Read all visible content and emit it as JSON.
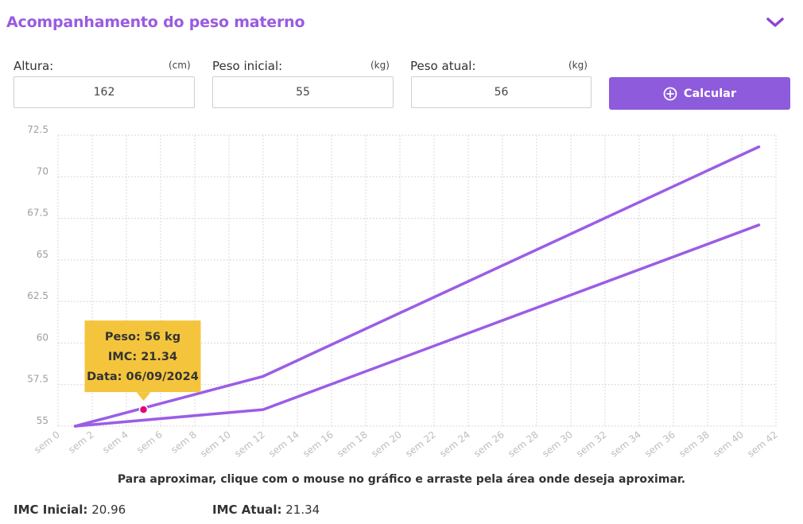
{
  "header": {
    "title": "Acompanhamento do peso materno",
    "toggle_icon": "chevron-down-icon",
    "accent_color": "#9a5be0"
  },
  "form": {
    "altura": {
      "label": "Altura:",
      "unit": "(cm)",
      "value": "162"
    },
    "peso_inicial": {
      "label": "Peso inicial:",
      "unit": "(kg)",
      "value": "55"
    },
    "peso_atual": {
      "label": "Peso atual:",
      "unit": "(kg)",
      "value": "56"
    },
    "calcular_label": "Calcular",
    "calcular_icon": "plus-circle-icon",
    "button_color": "#8e5bdc"
  },
  "chart_data": {
    "type": "line",
    "x_tick_labels": [
      "sem 0",
      "sem 2",
      "sem 4",
      "sem 6",
      "sem 8",
      "sem 10",
      "sem 12",
      "sem 14",
      "sem 16",
      "sem 18",
      "sem 20",
      "sem 22",
      "sem 24",
      "sem 26",
      "sem 28",
      "sem 30",
      "sem 32",
      "sem 34",
      "sem 36",
      "sem 38",
      "sem 40",
      "sem 42"
    ],
    "y_tick_labels": [
      "55",
      "57.5",
      "60",
      "62.5",
      "65",
      "67.5",
      "70",
      "72.5"
    ],
    "ylim": [
      55,
      72.5
    ],
    "xlim": [
      0,
      42
    ],
    "grid": true,
    "line_color": "#9b5de5",
    "series": [
      {
        "x": [
          1,
          12,
          41
        ],
        "y": [
          55,
          58,
          71.8
        ]
      },
      {
        "x": [
          1,
          12,
          41
        ],
        "y": [
          55,
          56,
          67.1
        ]
      }
    ],
    "marker": {
      "x": 5,
      "y": 56,
      "color": "#e0067a"
    },
    "tooltip": {
      "lines": [
        "Peso: 56 kg",
        "IMC: 21.34",
        "Data: 06/09/2024"
      ],
      "bg_color": "#f4c53c"
    }
  },
  "hint": "Para aproximar, clique com o mouse no gráfico e arraste pela área onde deseja aproximar.",
  "imc": {
    "inicial_label": "IMC Inicial:",
    "inicial_value": "20.96",
    "atual_label": "IMC Atual:",
    "atual_value": "21.34"
  }
}
